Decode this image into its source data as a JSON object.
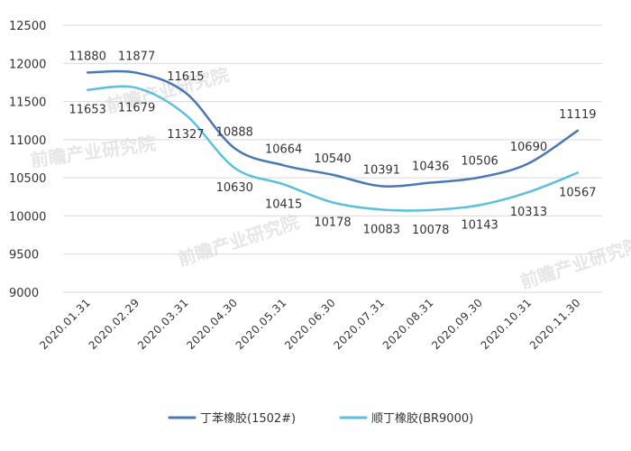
{
  "chart_data": {
    "type": "line",
    "title": "",
    "xlabel": "",
    "ylabel": "",
    "categories": [
      "2020.01.31",
      "2020.02.29",
      "2020.03.31",
      "2020.04.30",
      "2020.05.31",
      "2020.06.30",
      "2020.07.31",
      "2020.08.31",
      "2020.09.30",
      "2020.10.31",
      "2020.11.30"
    ],
    "series": [
      {
        "name": "丁苯橡胶(1502#)",
        "color": "#4a78b5",
        "values": [
          11880,
          11877,
          11615,
          10888,
          10664,
          10540,
          10391,
          10436,
          10506,
          10690,
          11119
        ]
      },
      {
        "name": "顺丁橡胶(BR9000)",
        "color": "#5bc0de",
        "values": [
          11653,
          11679,
          11327,
          10630,
          10415,
          10178,
          10083,
          10078,
          10143,
          10313,
          10567
        ]
      }
    ],
    "ylim": [
      9000,
      12500
    ],
    "yticks": [
      9000,
      9500,
      10000,
      10500,
      11000,
      11500,
      12000,
      12500
    ],
    "grid": true,
    "legend_position": "bottom",
    "smooth": true
  },
  "watermark": {
    "text": "前瞻产业研究院"
  }
}
